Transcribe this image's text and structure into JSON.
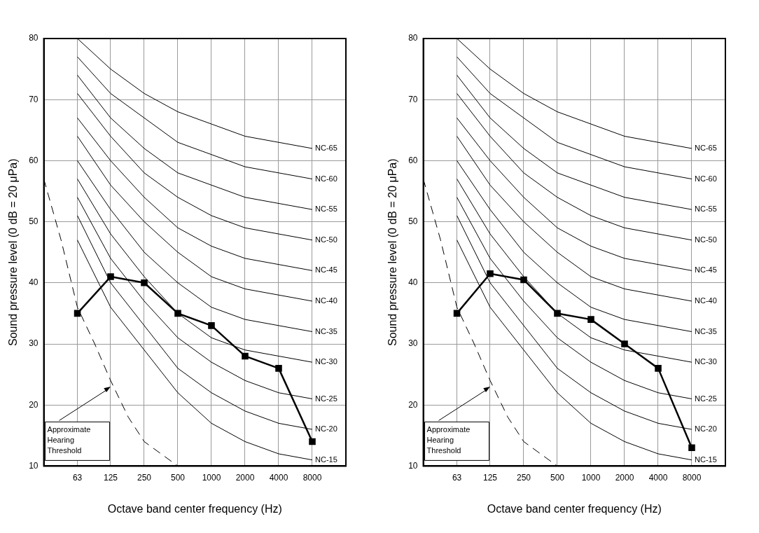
{
  "chart_data": [
    {
      "type": "line",
      "xlabel": "Octave band center frequency (Hz)",
      "ylabel": "Sound pressure level (0 dB = 20 μPa)",
      "log": "x",
      "xlim": [
        31.5,
        16000
      ],
      "xticks": [
        63,
        125,
        250,
        500,
        1000,
        2000,
        4000,
        8000
      ],
      "ylim": [
        10,
        80
      ],
      "yticks": [
        10,
        20,
        30,
        40,
        50,
        60,
        70,
        80
      ],
      "grid": true,
      "legend": false,
      "marker": "none",
      "x": [
        63,
        125,
        250,
        500,
        1000,
        2000,
        4000,
        8000
      ],
      "series": [
        {
          "name": "NC-65",
          "color": "#000000",
          "values": [
            80,
            75,
            71,
            68,
            66,
            64,
            63,
            62
          ]
        },
        {
          "name": "NC-60",
          "color": "#000000",
          "values": [
            77,
            71,
            67,
            63,
            61,
            59,
            58,
            57
          ]
        },
        {
          "name": "NC-55",
          "color": "#000000",
          "values": [
            74,
            67,
            62,
            58,
            56,
            54,
            53,
            52
          ]
        },
        {
          "name": "NC-50",
          "color": "#000000",
          "values": [
            71,
            64,
            58,
            54,
            51,
            49,
            48,
            47
          ]
        },
        {
          "name": "NC-45",
          "color": "#000000",
          "values": [
            67,
            60,
            54,
            49,
            46,
            44,
            43,
            42
          ]
        },
        {
          "name": "NC-40",
          "color": "#000000",
          "values": [
            64,
            56,
            50,
            45,
            41,
            39,
            38,
            37
          ]
        },
        {
          "name": "NC-35",
          "color": "#000000",
          "values": [
            60,
            52,
            45,
            40,
            36,
            34,
            33,
            32
          ]
        },
        {
          "name": "NC-30",
          "color": "#000000",
          "values": [
            57,
            48,
            41,
            35,
            31,
            29,
            28,
            27
          ]
        },
        {
          "name": "NC-25",
          "color": "#000000",
          "values": [
            54,
            44,
            37,
            31,
            27,
            24,
            22,
            21
          ]
        },
        {
          "name": "NC-20",
          "color": "#000000",
          "values": [
            51,
            40,
            33,
            26,
            22,
            19,
            17,
            16
          ]
        },
        {
          "name": "NC-15",
          "color": "#000000",
          "values": [
            47,
            36,
            29,
            22,
            17,
            14,
            12,
            11
          ]
        },
        {
          "color": "#000000",
          "line_style": "dashed",
          "x": [
            31.5,
            45,
            63,
            90,
            125,
            180,
            250,
            500
          ],
          "values": [
            57,
            47,
            36,
            30,
            24,
            18,
            14,
            10
          ]
        },
        {
          "color": "#000000",
          "marker": "square",
          "values": [
            35,
            41,
            40,
            35,
            33,
            28,
            26,
            14
          ]
        }
      ],
      "annotations": [
        {
          "text": "Approximate Hearing Threshold",
          "x": 125,
          "y": 23
        }
      ]
    },
    {
      "type": "line",
      "xlabel": "Octave band center frequency (Hz)",
      "ylabel": "Sound pressure level (0 dB = 20 μPa)",
      "log": "x",
      "xlim": [
        31.5,
        16000
      ],
      "xticks": [
        63,
        125,
        250,
        500,
        1000,
        2000,
        4000,
        8000
      ],
      "ylim": [
        10,
        80
      ],
      "yticks": [
        10,
        20,
        30,
        40,
        50,
        60,
        70,
        80
      ],
      "grid": true,
      "legend": false,
      "marker": "none",
      "x": [
        63,
        125,
        250,
        500,
        1000,
        2000,
        4000,
        8000
      ],
      "series": [
        {
          "name": "NC-65",
          "color": "#000000",
          "values": [
            80,
            75,
            71,
            68,
            66,
            64,
            63,
            62
          ]
        },
        {
          "name": "NC-60",
          "color": "#000000",
          "values": [
            77,
            71,
            67,
            63,
            61,
            59,
            58,
            57
          ]
        },
        {
          "name": "NC-55",
          "color": "#000000",
          "values": [
            74,
            67,
            62,
            58,
            56,
            54,
            53,
            52
          ]
        },
        {
          "name": "NC-50",
          "color": "#000000",
          "values": [
            71,
            64,
            58,
            54,
            51,
            49,
            48,
            47
          ]
        },
        {
          "name": "NC-45",
          "color": "#000000",
          "values": [
            67,
            60,
            54,
            49,
            46,
            44,
            43,
            42
          ]
        },
        {
          "name": "NC-40",
          "color": "#000000",
          "values": [
            64,
            56,
            50,
            45,
            41,
            39,
            38,
            37
          ]
        },
        {
          "name": "NC-35",
          "color": "#000000",
          "values": [
            60,
            52,
            45,
            40,
            36,
            34,
            33,
            32
          ]
        },
        {
          "name": "NC-30",
          "color": "#000000",
          "values": [
            57,
            48,
            41,
            35,
            31,
            29,
            28,
            27
          ]
        },
        {
          "name": "NC-25",
          "color": "#000000",
          "values": [
            54,
            44,
            37,
            31,
            27,
            24,
            22,
            21
          ]
        },
        {
          "name": "NC-20",
          "color": "#000000",
          "values": [
            51,
            40,
            33,
            26,
            22,
            19,
            17,
            16
          ]
        },
        {
          "name": "NC-15",
          "color": "#000000",
          "values": [
            47,
            36,
            29,
            22,
            17,
            14,
            12,
            11
          ]
        },
        {
          "color": "#000000",
          "line_style": "dashed",
          "x": [
            31.5,
            45,
            63,
            90,
            125,
            180,
            250,
            500
          ],
          "values": [
            57,
            47,
            36,
            30,
            24,
            18,
            14,
            10
          ]
        },
        {
          "color": "#000000",
          "marker": "square",
          "values": [
            35,
            41.5,
            40.5,
            35,
            34,
            30,
            26,
            13
          ]
        }
      ],
      "annotations": [
        {
          "text": "Approximate Hearing Threshold",
          "x": 125,
          "y": 23
        }
      ]
    }
  ]
}
